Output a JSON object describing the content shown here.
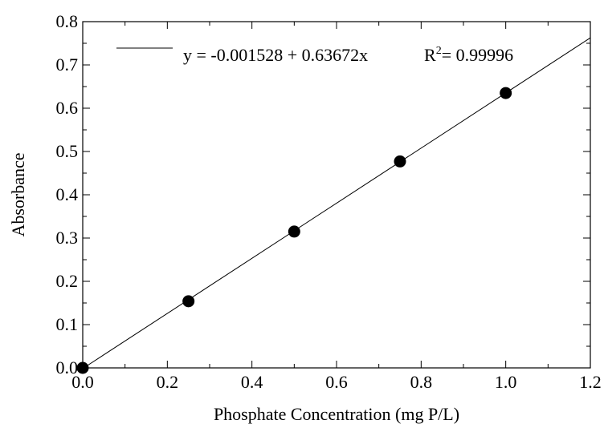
{
  "chart_data": {
    "type": "scatter",
    "title": "",
    "xlabel": "Phosphate Concentration (mg P/L)",
    "ylabel": "Absorbance",
    "xlim": [
      0.0,
      1.2
    ],
    "ylim": [
      0.0,
      0.8
    ],
    "x_ticks": [
      "0.0",
      "0.2",
      "0.4",
      "0.6",
      "0.8",
      "1.0",
      "1.2"
    ],
    "y_ticks": [
      "0.0",
      "0.1",
      "0.2",
      "0.3",
      "0.4",
      "0.5",
      "0.6",
      "0.7",
      "0.8"
    ],
    "grid": false,
    "series": [
      {
        "marker": "filled-circle",
        "color": "#000000",
        "points": [
          {
            "x": 0.0,
            "y": 0.0
          },
          {
            "x": 0.25,
            "y": 0.154
          },
          {
            "x": 0.5,
            "y": 0.315
          },
          {
            "x": 0.75,
            "y": 0.477
          },
          {
            "x": 1.0,
            "y": 0.635
          }
        ]
      }
    ],
    "fit_line": {
      "intercept": -0.001528,
      "slope": 0.63672,
      "color": "#000000"
    },
    "legend": {
      "placement": "top",
      "equation": "y = -0.001528 + 0.63672x",
      "r2_prefix": "R",
      "r2_sup": "2",
      "r2_value": "= 0.99996"
    }
  }
}
